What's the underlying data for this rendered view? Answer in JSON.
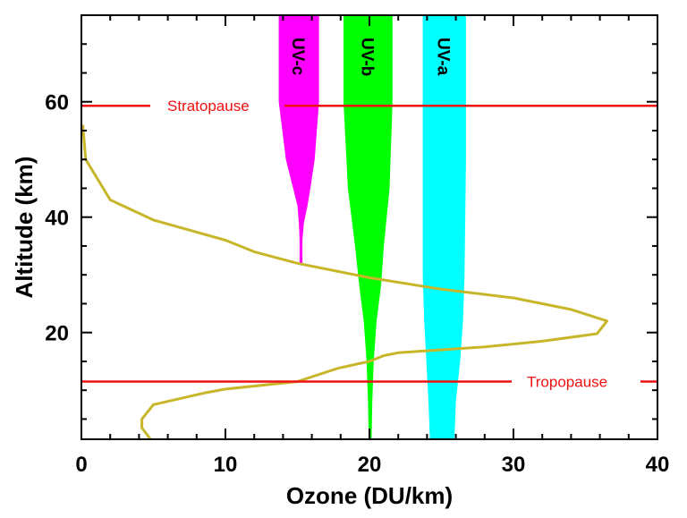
{
  "chart_data": {
    "type": "line",
    "xlabel": "Ozone (DU/km)",
    "ylabel": "Altitude (km)",
    "xlim": [
      0,
      40
    ],
    "ylim": [
      1.5,
      75
    ],
    "x_ticks": [
      0,
      10,
      20,
      30,
      40
    ],
    "y_ticks": [
      20,
      40,
      60
    ],
    "grid": false,
    "series": [
      {
        "color": "#c8b62a",
        "points": [
          [
            0.1,
            56
          ],
          [
            0.3,
            50
          ],
          [
            2,
            43
          ],
          [
            5,
            39.5
          ],
          [
            10,
            36
          ],
          [
            12,
            34
          ],
          [
            15,
            32
          ],
          [
            20,
            29.5
          ],
          [
            25,
            27.5
          ],
          [
            30,
            26
          ],
          [
            34,
            24
          ],
          [
            36.5,
            22
          ],
          [
            35.8,
            19.8
          ],
          [
            32,
            18.5
          ],
          [
            28,
            17.5
          ],
          [
            25,
            17
          ],
          [
            22,
            16.5
          ],
          [
            21,
            16
          ],
          [
            20,
            15
          ],
          [
            17.8,
            13.8
          ],
          [
            15,
            11.5
          ],
          [
            10,
            10.2
          ],
          [
            8.5,
            9.5
          ],
          [
            5,
            7.5
          ],
          [
            4.2,
            5
          ],
          [
            4.2,
            3.5
          ],
          [
            4.8,
            1.5
          ]
        ]
      }
    ],
    "bands": [
      {
        "name": "UV-c",
        "color": "#ff00ff",
        "profile": [
          [
            75,
            13.7,
            16.5
          ],
          [
            60,
            13.7,
            16.5
          ],
          [
            50,
            14.2,
            16.2
          ],
          [
            45,
            14.7,
            15.9
          ],
          [
            42,
            15.0,
            15.7
          ],
          [
            39,
            15.1,
            15.45
          ],
          [
            36,
            15.15,
            15.35
          ],
          [
            32,
            15.15,
            15.35
          ]
        ]
      },
      {
        "name": "UV-b",
        "color": "#00ff00",
        "profile": [
          [
            75,
            18.2,
            21.6
          ],
          [
            60,
            18.2,
            21.6
          ],
          [
            45,
            18.5,
            21.4
          ],
          [
            35,
            19.0,
            21.0
          ],
          [
            28,
            19.3,
            20.8
          ],
          [
            22,
            19.6,
            20.5
          ],
          [
            15,
            19.8,
            20.3
          ],
          [
            8,
            19.9,
            20.2
          ],
          [
            1.5,
            19.95,
            20.15
          ]
        ]
      },
      {
        "name": "UV-a",
        "color": "#00ffff",
        "profile": [
          [
            75,
            23.7,
            26.7
          ],
          [
            50,
            23.7,
            26.7
          ],
          [
            30,
            23.7,
            26.6
          ],
          [
            22,
            23.8,
            26.5
          ],
          [
            15,
            23.95,
            26.3
          ],
          [
            8,
            24.1,
            26.0
          ],
          [
            1.5,
            24.2,
            25.9
          ]
        ]
      }
    ],
    "reference_lines": [
      {
        "name": "Stratopause",
        "y": 59.3,
        "color": "#ee1111"
      },
      {
        "name": "Tropopause",
        "y": 11.5,
        "color": "#ee1111"
      }
    ]
  }
}
